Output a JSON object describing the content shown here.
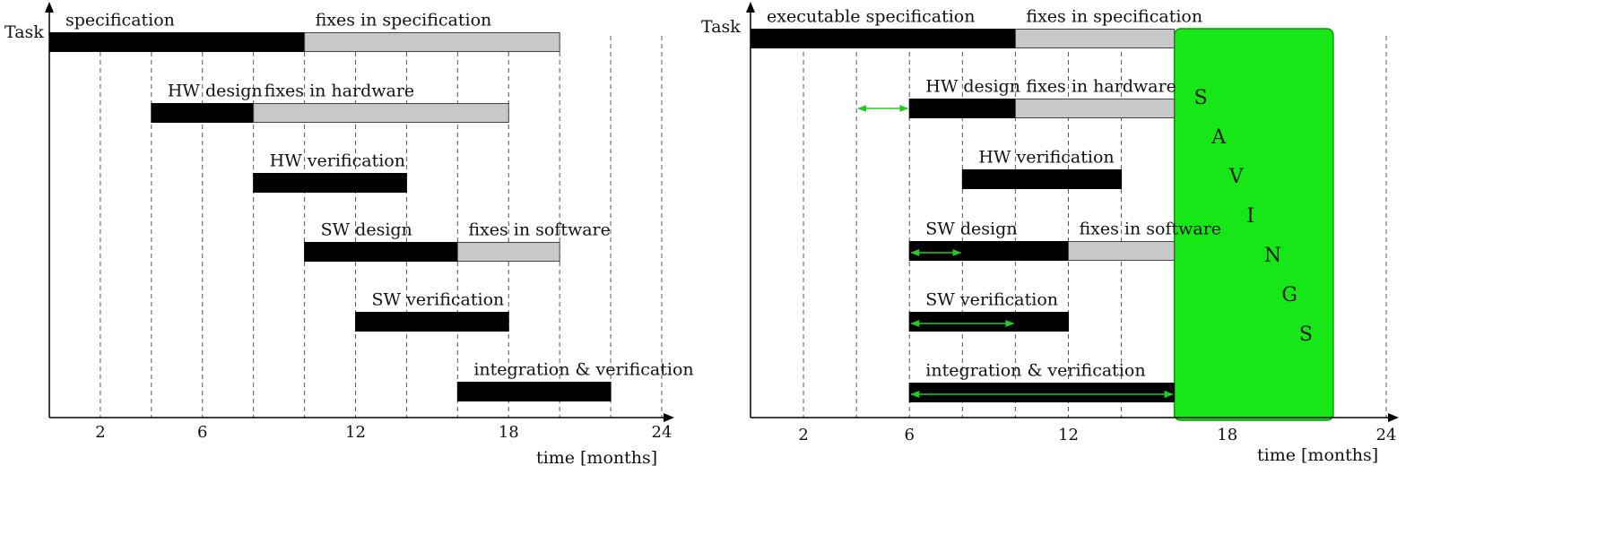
{
  "chart_data": [
    {
      "type": "gantt",
      "ylabel": "Task",
      "xlabel": "time [months]",
      "xlim": [
        0,
        24
      ],
      "xticks": [
        2,
        6,
        12,
        18,
        24
      ],
      "grid_months": [
        2,
        4,
        6,
        8,
        10,
        12,
        14,
        16,
        18,
        20,
        22,
        24
      ],
      "rows": [
        {
          "segments": [
            {
              "label": "specification",
              "start": 0,
              "end": 10,
              "kind": "dark"
            },
            {
              "label": "fixes in specification",
              "start": 10,
              "end": 20,
              "kind": "light"
            }
          ]
        },
        {
          "segments": [
            {
              "label": "HW design",
              "start": 4,
              "end": 8,
              "kind": "dark"
            },
            {
              "label": "fixes in hardware",
              "start": 8,
              "end": 18,
              "kind": "light"
            }
          ]
        },
        {
          "segments": [
            {
              "label": "HW verification",
              "start": 8,
              "end": 14,
              "kind": "dark"
            }
          ]
        },
        {
          "segments": [
            {
              "label": "SW design",
              "start": 10,
              "end": 16,
              "kind": "dark"
            },
            {
              "label": "fixes in software",
              "start": 16,
              "end": 20,
              "kind": "light"
            }
          ]
        },
        {
          "segments": [
            {
              "label": "SW verification",
              "start": 12,
              "end": 18,
              "kind": "dark"
            }
          ]
        },
        {
          "segments": [
            {
              "label": "integration & verification",
              "start": 16,
              "end": 22,
              "kind": "dark"
            }
          ]
        }
      ]
    },
    {
      "type": "gantt",
      "ylabel": "Task",
      "xlabel": "time [months]",
      "xlim": [
        0,
        24
      ],
      "xticks": [
        2,
        6,
        12,
        18,
        24
      ],
      "grid_months": [
        2,
        4,
        6,
        8,
        10,
        12,
        14,
        16,
        18,
        20,
        22,
        24
      ],
      "rows": [
        {
          "segments": [
            {
              "label": "executable specification",
              "start": 0,
              "end": 10,
              "kind": "dark"
            },
            {
              "label": "fixes in specification",
              "start": 10,
              "end": 16,
              "kind": "light"
            }
          ]
        },
        {
          "segments": [
            {
              "label": "HW design",
              "start": 6,
              "end": 10,
              "kind": "dark"
            },
            {
              "label": "fixes in hardware",
              "start": 10,
              "end": 16,
              "kind": "light"
            }
          ],
          "shift_arrow": {
            "from": 4,
            "to": 6
          }
        },
        {
          "segments": [
            {
              "label": "HW verification",
              "start": 8,
              "end": 14,
              "kind": "dark"
            }
          ]
        },
        {
          "segments": [
            {
              "label": "SW design",
              "start": 6,
              "end": 12,
              "kind": "dark"
            },
            {
              "label": "fixes in software",
              "start": 12,
              "end": 16,
              "kind": "light"
            }
          ],
          "shift_arrow": {
            "from": 6,
            "to": 8
          }
        },
        {
          "segments": [
            {
              "label": "SW verification",
              "start": 6,
              "end": 12,
              "kind": "dark"
            }
          ],
          "shift_arrow": {
            "from": 6,
            "to": 10
          }
        },
        {
          "segments": [
            {
              "label": "integration & verification",
              "start": 6,
              "end": 16,
              "kind": "dark"
            }
          ],
          "shift_arrow": {
            "from": 6,
            "to": 16
          }
        }
      ],
      "savings": {
        "start": 16,
        "end": 22,
        "letters": [
          "S",
          "A",
          "V",
          "I",
          "N",
          "G",
          "S"
        ]
      }
    }
  ],
  "colors": {
    "dark_bar": "#000000",
    "light_bar": "#c8c8c8",
    "light_bar_border": "#444444",
    "savings_fill": "#17e617",
    "savings_border": "#0a9a0a",
    "arrow": "#22cc22",
    "grid": "#555555",
    "axis": "#000000"
  }
}
